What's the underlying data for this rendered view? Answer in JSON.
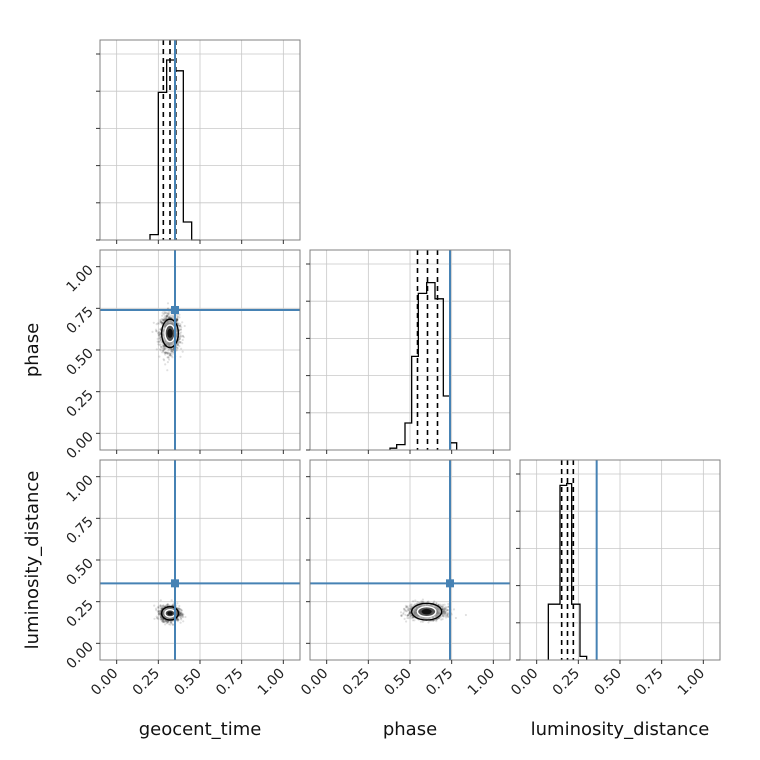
{
  "chart_data": {
    "type": "corner",
    "parameters": [
      "geocent_time",
      "phase",
      "luminosity_distance"
    ],
    "axis_range": [
      -0.1,
      1.1
    ],
    "ticks": [
      0.0,
      0.25,
      0.5,
      0.75,
      1.0
    ],
    "tick_labels": [
      "0.00",
      "0.25",
      "0.50",
      "0.75",
      "1.00"
    ],
    "axis_labels": {
      "x": [
        "geocent_time",
        "phase",
        "luminosity_distance"
      ],
      "y": [
        "",
        "phase",
        "luminosity_distance"
      ]
    },
    "grid": true,
    "truths": {
      "geocent_time": 0.35,
      "phase": 0.74,
      "luminosity_distance": 0.36
    },
    "truth_color": "#4682b4",
    "histograms": [
      {
        "parameter": "geocent_time",
        "bins": [
          [
            0.2,
            0.25,
            0.03
          ],
          [
            0.25,
            0.3,
            0.82
          ],
          [
            0.3,
            0.35,
            1.0
          ],
          [
            0.35,
            0.4,
            0.94
          ],
          [
            0.4,
            0.45,
            0.1
          ],
          [
            0.45,
            0.5,
            0.0
          ]
        ],
        "quantiles": [
          0.28,
          0.32,
          0.355
        ]
      },
      {
        "parameter": "phase",
        "bins": [
          [
            0.38,
            0.42,
            0.01
          ],
          [
            0.42,
            0.47,
            0.03
          ],
          [
            0.47,
            0.51,
            0.15
          ],
          [
            0.51,
            0.55,
            0.52
          ],
          [
            0.55,
            0.6,
            0.87
          ],
          [
            0.6,
            0.65,
            0.93
          ],
          [
            0.65,
            0.7,
            0.84
          ],
          [
            0.7,
            0.74,
            0.3
          ],
          [
            0.74,
            0.78,
            0.04
          ]
        ],
        "quantiles": [
          0.545,
          0.605,
          0.665
        ]
      },
      {
        "parameter": "luminosity_distance",
        "bins": [
          [
            0.07,
            0.14,
            0.31
          ],
          [
            0.14,
            0.18,
            0.97
          ],
          [
            0.18,
            0.21,
            0.98
          ],
          [
            0.21,
            0.26,
            0.31
          ],
          [
            0.26,
            0.3,
            0.02
          ]
        ],
        "quantiles": [
          0.15,
          0.185,
          0.22
        ]
      }
    ],
    "scatter_2d": [
      {
        "x": "geocent_time",
        "y": "phase",
        "center": [
          0.32,
          0.6
        ],
        "spread": [
          0.028,
          0.055
        ],
        "contours": [
          [
            0.03,
            0.05
          ],
          [
            0.05,
            0.085
          ]
        ]
      },
      {
        "x": "geocent_time",
        "y": "luminosity_distance",
        "center": [
          0.32,
          0.18
        ],
        "spread": [
          0.028,
          0.022
        ],
        "contours": [
          [
            0.03,
            0.022
          ],
          [
            0.05,
            0.04
          ]
        ]
      },
      {
        "x": "phase",
        "y": "luminosity_distance",
        "center": [
          0.6,
          0.19
        ],
        "spread": [
          0.055,
          0.022
        ],
        "contours": [
          [
            0.055,
            0.03
          ],
          [
            0.09,
            0.05
          ]
        ]
      }
    ]
  }
}
